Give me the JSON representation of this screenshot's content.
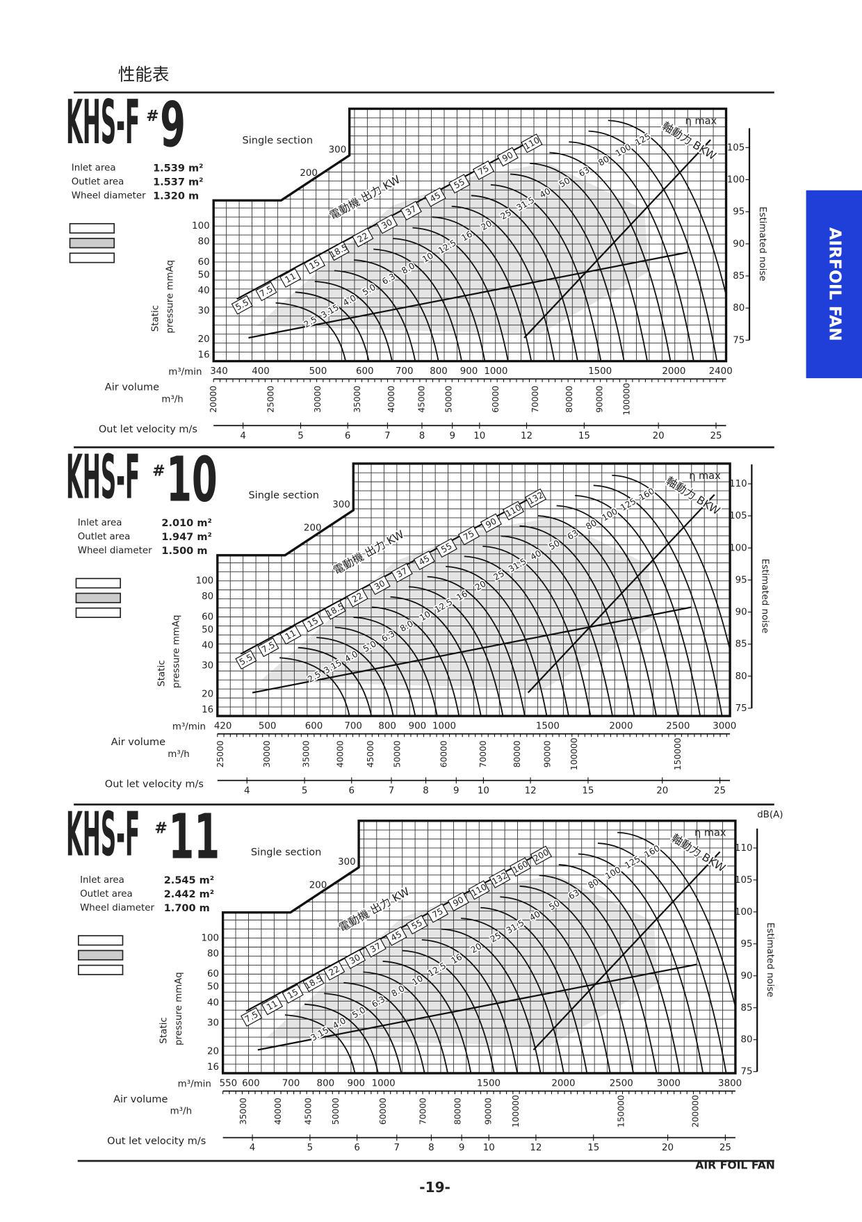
{
  "header": {
    "title": "性能表"
  },
  "side_tab": "AIRFOIL FAN",
  "panels": [
    {
      "model": "KHS-F",
      "hash": "#",
      "size": "9",
      "section": "Single section",
      "specs": [
        {
          "label": "Inlet area",
          "value": "1.539 m²"
        },
        {
          "label": "Outlet area",
          "value": "1.537 m²"
        },
        {
          "label": "Wheel diameter",
          "value": "1.320 m"
        }
      ],
      "pressure_label": [
        "Static",
        "pressure mmAq"
      ],
      "pressure_ticks": [
        "100",
        "80",
        "60",
        "50",
        "40",
        "30",
        "20",
        "16"
      ],
      "upper_ticks": [
        "300",
        "200"
      ],
      "noise_label": "Estimated noise",
      "noise_ticks": [
        "105",
        "100",
        "95",
        "90",
        "85",
        "80",
        "75"
      ],
      "air_volume_label": "Air volume",
      "m3min_label": "m³/min",
      "m3min_ticks": [
        "340",
        "400",
        "500",
        "600",
        "700",
        "800",
        "900",
        "1000",
        "1500",
        "2000",
        "2400"
      ],
      "m3h_label": "m³/h",
      "m3h_ticks": [
        "20000",
        "25000",
        "30000",
        "35000",
        "40000",
        "45000",
        "50000",
        "60000",
        "70000",
        "80000",
        "90000",
        "100000"
      ],
      "velocity_label": "Out let velocity m/s",
      "velocity_ticks": [
        "4",
        "5",
        "6",
        "7",
        "8",
        "9",
        "10",
        "12",
        "15",
        "20",
        "25"
      ],
      "motor_label": "電動機 出力 KW",
      "motor_kw": [
        "5.5",
        "7.5",
        "11",
        "15",
        "18.5",
        "22",
        "30",
        "37",
        "45",
        "55",
        "75",
        "90",
        "110"
      ],
      "shaft_label": "軸動力 BKW",
      "bkw": [
        "2.5",
        "3.15",
        "4.0",
        "5.0",
        "6.3",
        "8.0",
        "10",
        "12.5",
        "16",
        "20",
        "25",
        "31.5",
        "40",
        "50",
        "63",
        "80",
        "100",
        "125"
      ],
      "eta": "η max"
    },
    {
      "model": "KHS-F",
      "hash": "#",
      "size": "10",
      "section": "Single section",
      "specs": [
        {
          "label": "Inlet area",
          "value": "2.010 m²"
        },
        {
          "label": "Outlet area",
          "value": "1.947 m²"
        },
        {
          "label": "Wheel diameter",
          "value": "1.500 m"
        }
      ],
      "pressure_label": [
        "Static",
        "pressure mmAq"
      ],
      "pressure_ticks": [
        "100",
        "80",
        "60",
        "50",
        "40",
        "30",
        "20",
        "16"
      ],
      "upper_ticks": [
        "300",
        "200"
      ],
      "noise_label": "Estimated noise",
      "noise_ticks": [
        "110",
        "105",
        "100",
        "95",
        "90",
        "85",
        "80",
        "75"
      ],
      "air_volume_label": "Air volume",
      "m3min_label": "m³/min",
      "m3min_ticks": [
        "420",
        "500",
        "600",
        "700",
        "800",
        "900",
        "1000",
        "1500",
        "2000",
        "2500",
        "3000"
      ],
      "m3h_label": "m³/h",
      "m3h_ticks": [
        "25000",
        "30000",
        "35000",
        "40000",
        "45000",
        "50000",
        "60000",
        "70000",
        "80000",
        "90000",
        "100000",
        "150000"
      ],
      "velocity_label": "Out let velocity m/s",
      "velocity_ticks": [
        "4",
        "5",
        "6",
        "7",
        "8",
        "9",
        "10",
        "12",
        "15",
        "20",
        "25"
      ],
      "motor_label": "電動機 出力 KW",
      "motor_kw": [
        "5.5",
        "7.5",
        "11",
        "15",
        "18.5",
        "22",
        "30",
        "37",
        "45",
        "55",
        "75",
        "90",
        "110",
        "132"
      ],
      "shaft_label": "軸動力 BKW",
      "bkw": [
        "2.5",
        "3.15",
        "4.0",
        "5.0",
        "6.3",
        "8.0",
        "10",
        "12.5",
        "16",
        "20",
        "25",
        "31.5",
        "40",
        "50",
        "63",
        "80",
        "100",
        "125",
        "160"
      ],
      "eta": "η max"
    },
    {
      "model": "KHS-F",
      "hash": "#",
      "size": "11",
      "section": "Single section",
      "specs": [
        {
          "label": "Inlet area",
          "value": "2.545 m²"
        },
        {
          "label": "Outlet area",
          "value": "2.442 m²"
        },
        {
          "label": "Wheel diameter",
          "value": "1.700 m"
        }
      ],
      "pressure_label": [
        "Static",
        "pressure mmAq"
      ],
      "pressure_ticks": [
        "100",
        "80",
        "60",
        "50",
        "40",
        "30",
        "20",
        "16"
      ],
      "upper_ticks": [
        "300",
        "200"
      ],
      "noise_label": "Estimated noise",
      "noise_unit": "dB(A)",
      "noise_ticks": [
        "110",
        "105",
        "100",
        "95",
        "90",
        "85",
        "80",
        "75"
      ],
      "air_volume_label": "Air volume",
      "m3min_label": "m³/min",
      "m3min_ticks": [
        "550",
        "600",
        "700",
        "800",
        "900",
        "1000",
        "1500",
        "2000",
        "2500",
        "3000",
        "3800"
      ],
      "m3h_label": "m³/h",
      "m3h_ticks": [
        "35000",
        "40000",
        "45000",
        "50000",
        "60000",
        "70000",
        "80000",
        "90000",
        "100000",
        "150000",
        "200000"
      ],
      "velocity_label": "Out let velocity m/s",
      "velocity_ticks": [
        "4",
        "5",
        "6",
        "7",
        "8",
        "9",
        "10",
        "12",
        "15",
        "20",
        "25"
      ],
      "motor_label": "電動機 出力 KW",
      "motor_kw": [
        "7.5",
        "11",
        "15",
        "18.5",
        "22",
        "30",
        "37",
        "45",
        "55",
        "75",
        "90",
        "110",
        "132",
        "160",
        "200"
      ],
      "shaft_label": "軸動力 BKW",
      "bkw": [
        "3.15",
        "4.0",
        "5.0",
        "6.3",
        "8.0",
        "10",
        "12.5",
        "16",
        "20",
        "25",
        "31.5",
        "40",
        "50",
        "63",
        "80",
        "100",
        "125",
        "160"
      ],
      "eta": "η max"
    }
  ],
  "footer": {
    "brand": "AIR FOIL FAN",
    "page": "-19-"
  }
}
